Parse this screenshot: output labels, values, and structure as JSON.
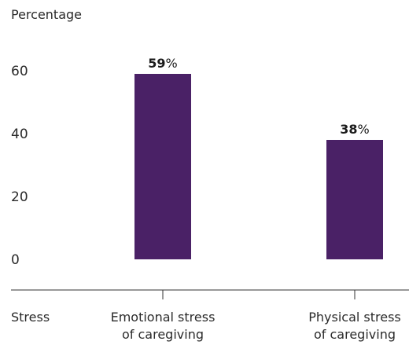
{
  "chart_data": {
    "type": "bar",
    "ylabel": "Percentage",
    "xlabel": "Stress",
    "categories": [
      [
        "Emotional stress",
        "of caregiving"
      ],
      [
        "Physical stress",
        "of caregiving"
      ]
    ],
    "values": [
      59,
      38
    ],
    "data_labels": [
      "59",
      "38"
    ],
    "value_suffix": "%",
    "yticks": [
      0,
      20,
      40,
      60
    ],
    "ylim": [
      0,
      64
    ],
    "grid": false,
    "legend": "none",
    "bar_color": "#4a2166",
    "axis_color": "#333333"
  }
}
